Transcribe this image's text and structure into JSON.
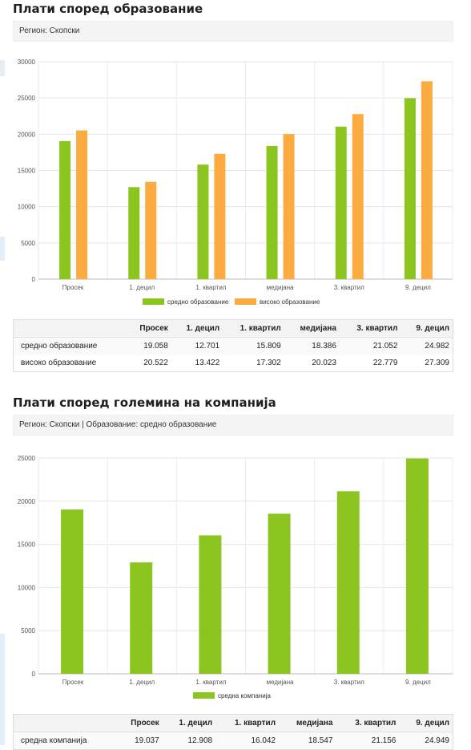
{
  "colors": {
    "series1": "#8cc520",
    "series2": "#fbab3f"
  },
  "section1": {
    "title": "Плати според образование",
    "filter": "Регион: Скопски",
    "table": {
      "headers": [
        "",
        "Просек",
        "1. децил",
        "1. квартил",
        "медијана",
        "3. квартил",
        "9. децил"
      ],
      "rows": [
        [
          "средно образование",
          "19.058",
          "12.701",
          "15.809",
          "18.386",
          "21.052",
          "24.982"
        ],
        [
          "високо образование",
          "20.522",
          "13.422",
          "17.302",
          "20.023",
          "22.779",
          "27.309"
        ]
      ]
    }
  },
  "section2": {
    "title": "Плати според големина на компанија",
    "filter": "Регион: Скопски | Образование: средно образование",
    "table": {
      "headers": [
        "",
        "Просек",
        "1. децил",
        "1. квартил",
        "медијана",
        "3. квартил",
        "9. децил"
      ],
      "rows": [
        [
          "средна компанија",
          "19.037",
          "12.908",
          "16.042",
          "18.547",
          "21.156",
          "24.949"
        ]
      ]
    }
  },
  "chart_data": [
    {
      "type": "bar",
      "categories": [
        "Просек",
        "1. децил",
        "1. квартил",
        "медијана",
        "3. квартил",
        "9. децил"
      ],
      "series": [
        {
          "name": "средно образование",
          "values": [
            19058,
            12701,
            15809,
            18386,
            21052,
            24982
          ]
        },
        {
          "name": "високо образование",
          "values": [
            20522,
            13422,
            17302,
            20023,
            22779,
            27309
          ]
        }
      ],
      "yticks": [
        0,
        5000,
        10000,
        15000,
        20000,
        25000,
        30000
      ],
      "ylim": [
        0,
        30000
      ],
      "legend": "bottom",
      "grid": true
    },
    {
      "type": "bar",
      "categories": [
        "Просек",
        "1. децил",
        "1. квартил",
        "медијана",
        "3. квартил",
        "9. децил"
      ],
      "series": [
        {
          "name": "средна компанија",
          "values": [
            19037,
            12908,
            16042,
            18547,
            21156,
            24949
          ]
        }
      ],
      "yticks": [
        0,
        5000,
        10000,
        15000,
        20000,
        25000
      ],
      "ylim": [
        0,
        25000
      ],
      "legend": "bottom",
      "grid": true
    }
  ]
}
